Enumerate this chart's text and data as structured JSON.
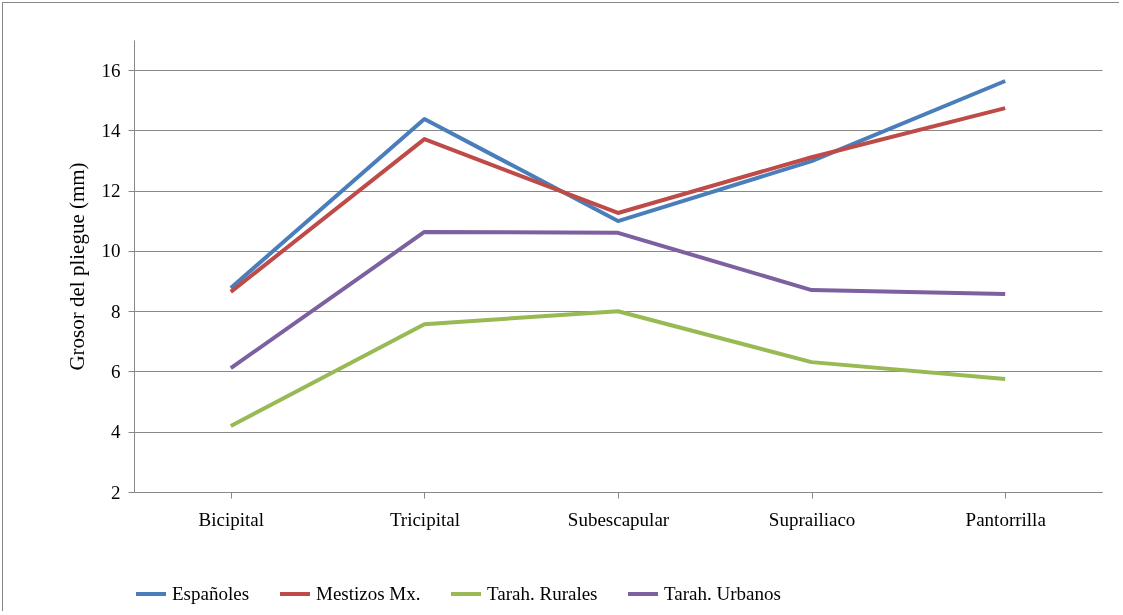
{
  "chart_data": {
    "type": "line",
    "ylabel": "Grosor del pliegue (mm)",
    "categories": [
      "Bicipital",
      "Tricipital",
      "Subescapular",
      "Suprailiaco",
      "Pantorrilla"
    ],
    "series": [
      {
        "name": "Españoles",
        "color": "#4a7ebb",
        "values": [
          8.77,
          14.38,
          10.99,
          12.98,
          15.64
        ]
      },
      {
        "name": "Mestizos Mx.",
        "color": "#be4b48",
        "values": [
          8.64,
          13.71,
          11.26,
          13.11,
          14.74
        ]
      },
      {
        "name": "Tarah. Rurales",
        "color": "#98b954",
        "values": [
          4.19,
          7.57,
          8.0,
          6.31,
          5.75
        ]
      },
      {
        "name": "Tarah. Urbanos",
        "color": "#7d60a0",
        "values": [
          6.11,
          10.63,
          10.6,
          8.7,
          8.57
        ]
      }
    ],
    "ylim": [
      2,
      17
    ],
    "yticks": [
      2,
      4,
      6,
      8,
      10,
      12,
      14,
      16
    ],
    "grid": "y",
    "legend": "bottom",
    "marker": "none",
    "line_style": "solid"
  }
}
